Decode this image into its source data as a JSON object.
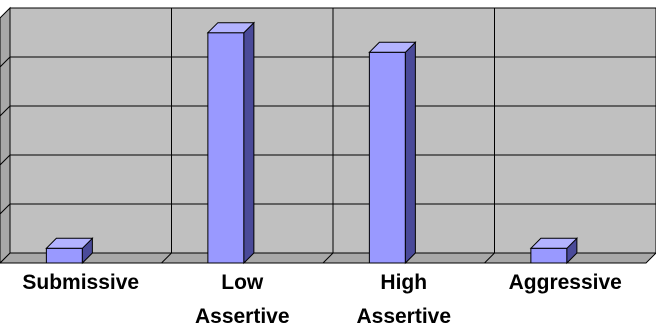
{
  "chart_data": {
    "type": "bar",
    "categories": [
      [
        "Submissive"
      ],
      [
        "Low",
        "Assertive"
      ],
      [
        "High",
        "Assertive"
      ],
      [
        "Aggressive"
      ]
    ],
    "values": [
      3,
      47,
      43,
      3
    ],
    "ylim": [
      0,
      50
    ],
    "grid": true,
    "style": {
      "plot_background": "#c0c0c0",
      "bar_front": "#9999ff",
      "bar_side": "#4a4a99",
      "bar_top": "#b3b3ff",
      "grid_color": "#000000"
    }
  }
}
